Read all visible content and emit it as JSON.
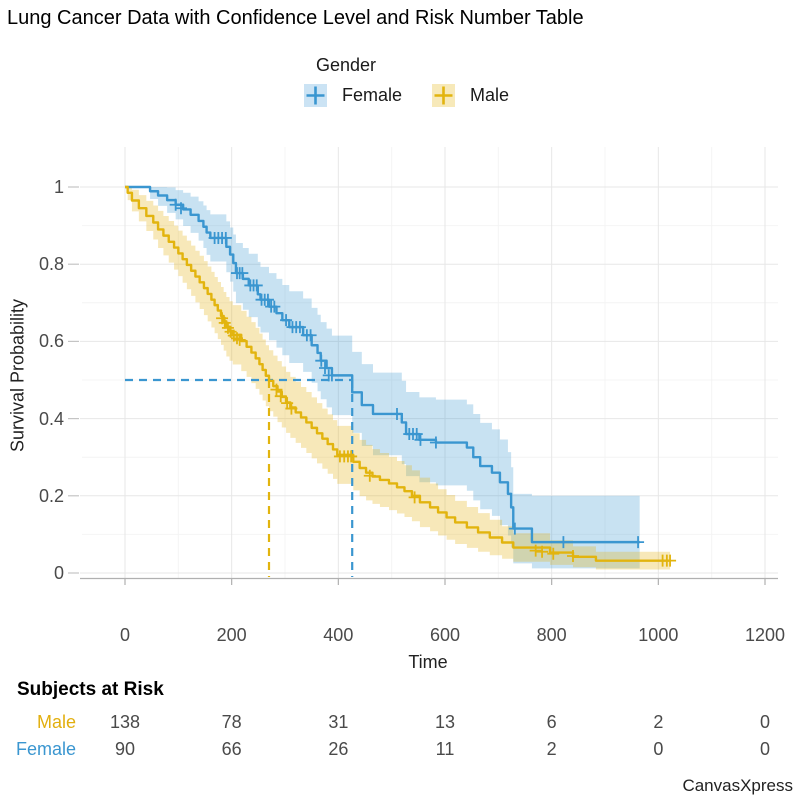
{
  "title": "Lung Cancer Data with Confidence Level and Risk Number Table",
  "watermark": "CanvasXpress",
  "legend": {
    "title": "Gender",
    "items": [
      {
        "label": "Female",
        "line_color": "#3A96D0",
        "fill_color": "#CBE3F4"
      },
      {
        "label": "Male",
        "line_color": "#E2B40E",
        "fill_color": "#F7E9B9"
      }
    ]
  },
  "axes": {
    "x": {
      "title": "Time",
      "ticks": [
        0,
        200,
        400,
        600,
        800,
        1000,
        1200
      ],
      "minor": [
        100,
        300,
        500,
        700,
        900,
        1100
      ],
      "range": [
        0,
        1200
      ]
    },
    "y": {
      "title": "Survival Probability",
      "ticks": [
        1,
        0.8,
        0.6,
        0.4,
        0.2,
        0
      ],
      "minor": [
        0.9,
        0.7,
        0.5,
        0.3,
        0.1
      ],
      "range": [
        0,
        1
      ]
    }
  },
  "risk_table": {
    "heading": "Subjects at Risk",
    "times": [
      0,
      200,
      400,
      600,
      800,
      1000,
      1200
    ],
    "rows": [
      {
        "label": "Male",
        "color": "#E2AF0F",
        "values": [
          138,
          78,
          31,
          13,
          6,
          2,
          0
        ]
      },
      {
        "label": "Female",
        "color": "#3A96D0",
        "values": [
          90,
          66,
          26,
          11,
          2,
          0,
          0
        ]
      }
    ]
  },
  "palette": {
    "grid_major": "#e7e7e7",
    "grid_minor": "#f4f4f4",
    "axis_line": "#b0b0b0",
    "tick_mark": "#c4c4c4",
    "tick_text": "#4a4a4a"
  },
  "chart_data": {
    "type": "line",
    "subtype": "kaplan-meier-survival",
    "title": "Lung Cancer Data with Confidence Level and Risk Number Table",
    "xlabel": "Time",
    "ylabel": "Survival Probability",
    "xlim": [
      0,
      1200
    ],
    "ylim": [
      0,
      1
    ],
    "grid": true,
    "legend_position": "top",
    "confidence_band": true,
    "median_probability_level": 0.5,
    "series": [
      {
        "name": "Female",
        "color": "#3A96D0",
        "band_color": "rgba(58,150,208,0.28)",
        "n": 90,
        "median_time": 426,
        "show_horizontal_median": true,
        "steps": [
          [
            0,
            1.0,
            1.0,
            1.0
          ],
          [
            47,
            0.989,
            0.969,
            1.0
          ],
          [
            62,
            0.978,
            0.951,
            1.0
          ],
          [
            79,
            0.966,
            0.933,
            0.999
          ],
          [
            95,
            0.954,
            0.916,
            0.992
          ],
          [
            109,
            0.942,
            0.899,
            0.985
          ],
          [
            123,
            0.928,
            0.881,
            0.975
          ],
          [
            138,
            0.912,
            0.861,
            0.963
          ],
          [
            147,
            0.897,
            0.842,
            0.952
          ],
          [
            153,
            0.882,
            0.824,
            0.94
          ],
          [
            160,
            0.868,
            0.807,
            0.929
          ],
          [
            190,
            0.845,
            0.779,
            0.911
          ],
          [
            197,
            0.825,
            0.755,
            0.895
          ],
          [
            203,
            0.803,
            0.729,
            0.877
          ],
          [
            208,
            0.777,
            0.699,
            0.855
          ],
          [
            221,
            0.762,
            0.682,
            0.842
          ],
          [
            232,
            0.745,
            0.663,
            0.827
          ],
          [
            249,
            0.722,
            0.638,
            0.806
          ],
          [
            254,
            0.708,
            0.623,
            0.793
          ],
          [
            270,
            0.69,
            0.603,
            0.777
          ],
          [
            284,
            0.673,
            0.584,
            0.762
          ],
          [
            295,
            0.655,
            0.564,
            0.746
          ],
          [
            308,
            0.637,
            0.544,
            0.73
          ],
          [
            334,
            0.616,
            0.521,
            0.711
          ],
          [
            350,
            0.59,
            0.493,
            0.687
          ],
          [
            361,
            0.57,
            0.471,
            0.669
          ],
          [
            367,
            0.55,
            0.45,
            0.65
          ],
          [
            378,
            0.531,
            0.429,
            0.633
          ],
          [
            388,
            0.512,
            0.409,
            0.615
          ],
          [
            426,
            0.468,
            0.363,
            0.573
          ],
          [
            444,
            0.435,
            0.329,
            0.541
          ],
          [
            465,
            0.412,
            0.305,
            0.519
          ],
          [
            519,
            0.39,
            0.282,
            0.498
          ],
          [
            527,
            0.36,
            0.251,
            0.469
          ],
          [
            552,
            0.345,
            0.235,
            0.455
          ],
          [
            583,
            0.338,
            0.227,
            0.449
          ],
          [
            641,
            0.325,
            0.213,
            0.437
          ],
          [
            653,
            0.3,
            0.188,
            0.412
          ],
          [
            666,
            0.277,
            0.165,
            0.389
          ],
          [
            688,
            0.26,
            0.148,
            0.372
          ],
          [
            703,
            0.235,
            0.124,
            0.346
          ],
          [
            718,
            0.205,
            0.097,
            0.313
          ],
          [
            724,
            0.17,
            0.066,
            0.274
          ],
          [
            728,
            0.115,
            0.025,
            0.205
          ],
          [
            763,
            0.08,
            0.012,
            0.2
          ],
          [
            965,
            0.08,
            0.012,
            0.2
          ]
        ],
        "censors": [
          [
            95,
            0.954
          ],
          [
            105,
            0.945
          ],
          [
            168,
            0.868
          ],
          [
            175,
            0.868
          ],
          [
            182,
            0.868
          ],
          [
            189,
            0.868
          ],
          [
            210,
            0.777
          ],
          [
            215,
            0.777
          ],
          [
            220,
            0.777
          ],
          [
            235,
            0.745
          ],
          [
            241,
            0.745
          ],
          [
            247,
            0.745
          ],
          [
            256,
            0.708
          ],
          [
            262,
            0.708
          ],
          [
            268,
            0.708
          ],
          [
            274,
            0.69
          ],
          [
            280,
            0.69
          ],
          [
            302,
            0.655
          ],
          [
            314,
            0.637
          ],
          [
            321,
            0.637
          ],
          [
            328,
            0.637
          ],
          [
            341,
            0.616
          ],
          [
            348,
            0.616
          ],
          [
            368,
            0.55
          ],
          [
            375,
            0.531
          ],
          [
            382,
            0.512
          ],
          [
            388,
            0.512
          ],
          [
            510,
            0.412
          ],
          [
            533,
            0.36
          ],
          [
            540,
            0.36
          ],
          [
            547,
            0.36
          ],
          [
            554,
            0.345
          ],
          [
            583,
            0.338
          ],
          [
            731,
            0.115
          ],
          [
            822,
            0.08
          ],
          [
            962,
            0.08
          ]
        ]
      },
      {
        "name": "Male",
        "color": "#E2B40E",
        "band_color": "rgba(227,180,23,0.3)",
        "n": 138,
        "median_time": 270,
        "show_horizontal_median": false,
        "steps": [
          [
            0,
            1.0,
            1.0,
            1.0
          ],
          [
            5,
            0.985,
            0.966,
            1.0
          ],
          [
            13,
            0.965,
            0.937,
            0.993
          ],
          [
            26,
            0.945,
            0.911,
            0.979
          ],
          [
            40,
            0.925,
            0.886,
            0.964
          ],
          [
            53,
            0.908,
            0.864,
            0.952
          ],
          [
            62,
            0.89,
            0.842,
            0.938
          ],
          [
            72,
            0.874,
            0.823,
            0.925
          ],
          [
            82,
            0.858,
            0.804,
            0.912
          ],
          [
            92,
            0.843,
            0.786,
            0.9
          ],
          [
            100,
            0.828,
            0.769,
            0.887
          ],
          [
            108,
            0.813,
            0.752,
            0.874
          ],
          [
            116,
            0.798,
            0.735,
            0.861
          ],
          [
            124,
            0.783,
            0.718,
            0.848
          ],
          [
            132,
            0.768,
            0.701,
            0.835
          ],
          [
            140,
            0.753,
            0.684,
            0.822
          ],
          [
            148,
            0.738,
            0.668,
            0.808
          ],
          [
            155,
            0.723,
            0.652,
            0.794
          ],
          [
            162,
            0.708,
            0.636,
            0.78
          ],
          [
            168,
            0.694,
            0.621,
            0.767
          ],
          [
            174,
            0.68,
            0.606,
            0.754
          ],
          [
            180,
            0.666,
            0.591,
            0.741
          ],
          [
            185,
            0.652,
            0.576,
            0.728
          ],
          [
            190,
            0.638,
            0.561,
            0.715
          ],
          [
            196,
            0.627,
            0.55,
            0.704
          ],
          [
            202,
            0.617,
            0.54,
            0.694
          ],
          [
            218,
            0.601,
            0.523,
            0.679
          ],
          [
            228,
            0.586,
            0.508,
            0.664
          ],
          [
            237,
            0.571,
            0.492,
            0.65
          ],
          [
            245,
            0.556,
            0.477,
            0.635
          ],
          [
            252,
            0.541,
            0.462,
            0.62
          ],
          [
            258,
            0.526,
            0.447,
            0.605
          ],
          [
            264,
            0.511,
            0.432,
            0.59
          ],
          [
            270,
            0.498,
            0.419,
            0.577
          ],
          [
            278,
            0.484,
            0.405,
            0.563
          ],
          [
            286,
            0.47,
            0.391,
            0.549
          ],
          [
            294,
            0.456,
            0.377,
            0.535
          ],
          [
            302,
            0.442,
            0.363,
            0.521
          ],
          [
            310,
            0.429,
            0.35,
            0.508
          ],
          [
            320,
            0.416,
            0.337,
            0.495
          ],
          [
            330,
            0.403,
            0.324,
            0.482
          ],
          [
            340,
            0.39,
            0.311,
            0.469
          ],
          [
            350,
            0.376,
            0.297,
            0.455
          ],
          [
            360,
            0.362,
            0.284,
            0.44
          ],
          [
            370,
            0.348,
            0.27,
            0.426
          ],
          [
            380,
            0.334,
            0.257,
            0.411
          ],
          [
            390,
            0.32,
            0.244,
            0.396
          ],
          [
            398,
            0.306,
            0.231,
            0.381
          ],
          [
            428,
            0.288,
            0.214,
            0.362
          ],
          [
            440,
            0.272,
            0.199,
            0.345
          ],
          [
            452,
            0.26,
            0.188,
            0.332
          ],
          [
            464,
            0.25,
            0.179,
            0.321
          ],
          [
            478,
            0.241,
            0.171,
            0.311
          ],
          [
            495,
            0.232,
            0.163,
            0.301
          ],
          [
            510,
            0.222,
            0.154,
            0.29
          ],
          [
            524,
            0.212,
            0.145,
            0.279
          ],
          [
            538,
            0.2,
            0.134,
            0.266
          ],
          [
            553,
            0.183,
            0.119,
            0.247
          ],
          [
            572,
            0.17,
            0.108,
            0.232
          ],
          [
            587,
            0.157,
            0.097,
            0.217
          ],
          [
            603,
            0.144,
            0.086,
            0.202
          ],
          [
            619,
            0.131,
            0.075,
            0.187
          ],
          [
            641,
            0.118,
            0.065,
            0.171
          ],
          [
            662,
            0.105,
            0.055,
            0.155
          ],
          [
            684,
            0.092,
            0.046,
            0.138
          ],
          [
            707,
            0.079,
            0.037,
            0.121
          ],
          [
            728,
            0.066,
            0.029,
            0.103
          ],
          [
            797,
            0.053,
            0.021,
            0.085
          ],
          [
            840,
            0.042,
            0.015,
            0.069
          ],
          [
            883,
            0.032,
            0.009,
            0.055
          ],
          [
            1022,
            0.032,
            0.009,
            0.055
          ]
        ],
        "censors": [
          [
            182,
            0.66
          ],
          [
            187,
            0.648
          ],
          [
            193,
            0.635
          ],
          [
            198,
            0.625
          ],
          [
            204,
            0.615
          ],
          [
            210,
            0.608
          ],
          [
            215,
            0.604
          ],
          [
            284,
            0.475
          ],
          [
            292,
            0.458
          ],
          [
            304,
            0.44
          ],
          [
            312,
            0.426
          ],
          [
            403,
            0.302
          ],
          [
            411,
            0.302
          ],
          [
            418,
            0.302
          ],
          [
            424,
            0.302
          ],
          [
            459,
            0.252
          ],
          [
            543,
            0.196
          ],
          [
            770,
            0.058
          ],
          [
            782,
            0.055
          ],
          [
            803,
            0.05
          ],
          [
            840,
            0.044
          ],
          [
            1008,
            0.032
          ],
          [
            1016,
            0.032
          ],
          [
            1022,
            0.032
          ]
        ]
      }
    ]
  }
}
